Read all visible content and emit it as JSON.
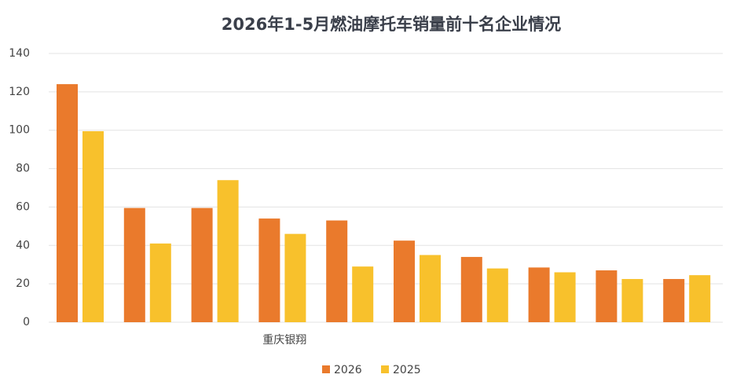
{
  "chart_data": {
    "type": "bar",
    "title": "2026年1-5月燃油摩托车销量前十名企业情况",
    "categories": [
      null,
      null,
      null,
      "重庆银翔",
      null,
      null,
      null,
      null,
      null,
      null
    ],
    "series": [
      {
        "name": "2026",
        "color": "#ea7a2c",
        "values": [
          124,
          59.5,
          59.5,
          54,
          53,
          42.5,
          34,
          28.5,
          27,
          22.5
        ]
      },
      {
        "name": "2025",
        "color": "#f8c12c",
        "values": [
          99.5,
          41,
          74,
          46,
          29,
          35,
          28,
          26,
          22.5,
          24.5
        ]
      }
    ],
    "ylim": [
      0,
      140
    ],
    "yticks": [
      0,
      20,
      40,
      60,
      80,
      100,
      120,
      140
    ],
    "grid": true,
    "legend": "bottom"
  }
}
